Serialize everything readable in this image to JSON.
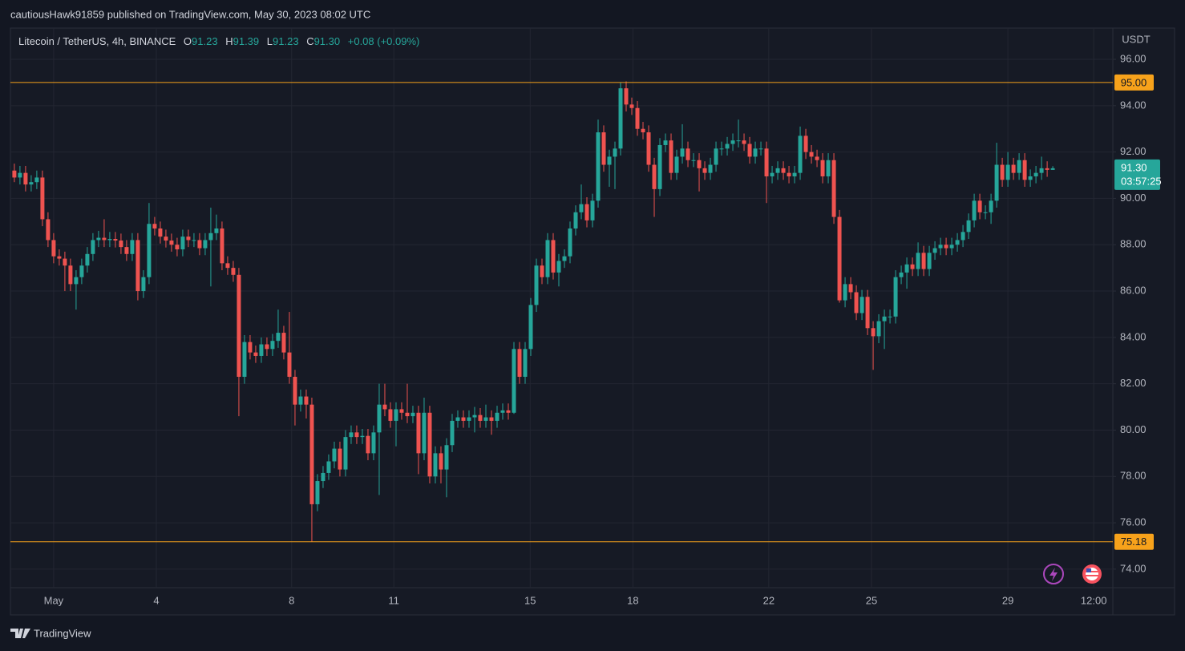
{
  "header": {
    "attribution": "cautiousHawk91859 published on TradingView.com, May 30, 2023 08:02 UTC"
  },
  "footer": {
    "brand": "TradingView"
  },
  "chart_data": {
    "type": "candlestick",
    "symbol": "Litecoin / TetherUS, 4h, BINANCE",
    "legend": {
      "o_label": "O",
      "o": "91.23",
      "h_label": "H",
      "h": "91.39",
      "l_label": "L",
      "l": "91.23",
      "c_label": "C",
      "c": "91.30",
      "change": "+0.08 (+0.09%)"
    },
    "y_unit": "USDT",
    "up_color": "#26a69a",
    "down_color": "#ef5350",
    "open": [
      91.2,
      90.9,
      91.1,
      90.6,
      90.7,
      90.9,
      89.1,
      88.2,
      87.5,
      87.4,
      87.1,
      86.3,
      86.6,
      87.1,
      87.6,
      88.2,
      88.3,
      88.2,
      88.25,
      88.18,
      87.9,
      87.6,
      88.2,
      86.0,
      86.6,
      88.9,
      88.7,
      88.35,
      88.18,
      88.0,
      87.8,
      88.35,
      88.2,
      88.2,
      87.85,
      88.2,
      88.5,
      88.7,
      87.2,
      87.0,
      86.7,
      82.3,
      83.8,
      83.35,
      83.2,
      83.7,
      83.5,
      83.85,
      84.2,
      83.35,
      82.3,
      81.1,
      81.45,
      81.1,
      76.8,
      77.8,
      78.15,
      78.65,
      79.2,
      78.3,
      79.7,
      79.9,
      79.7,
      79.75,
      79.0,
      79.9,
      81.1,
      80.9,
      80.4,
      80.9,
      80.75,
      80.6,
      80.75,
      79.0,
      80.75,
      78.0,
      79.0,
      78.3,
      79.35,
      80.4,
      80.55,
      80.4,
      80.55,
      80.65,
      80.4,
      80.55,
      80.4,
      80.75,
      80.85,
      80.75,
      83.5,
      82.3,
      83.5,
      85.4,
      87.1,
      86.6,
      88.2,
      86.8,
      87.3,
      87.5,
      88.7,
      89.4,
      89.75,
      89.05,
      89.9,
      92.85,
      91.45,
      91.8,
      92.15,
      94.75,
      94.05,
      93.9,
      93.0,
      92.85,
      91.45,
      90.4,
      92.3,
      92.5,
      91.1,
      91.8,
      92.15,
      91.65,
      91.65,
      91.3,
      91.1,
      91.45,
      92.15,
      92.15,
      92.35,
      92.5,
      92.5,
      92.35,
      91.8,
      92.15,
      92.15,
      90.95,
      91.1,
      91.3,
      91.1,
      90.95,
      91.1,
      92.7,
      92.0,
      91.8,
      91.65,
      90.95,
      91.65,
      89.2,
      85.6,
      86.3,
      85.95,
      85.05,
      85.75,
      84.4,
      84.05,
      84.7,
      84.9,
      84.9,
      86.6,
      86.8,
      87.15,
      86.95,
      87.65,
      86.95,
      87.65,
      87.85,
      88.0,
      87.85,
      88.0,
      88.2,
      88.55,
      89.05,
      89.9,
      89.4,
      89.4,
      89.9,
      91.45,
      90.8,
      91.45,
      91.1,
      91.65,
      90.8,
      90.95,
      91.1,
      91.3,
      91.23
    ],
    "high": [
      91.5,
      91.4,
      91.4,
      91.0,
      91.2,
      91.2,
      89.4,
      88.5,
      87.8,
      87.7,
      87.4,
      86.9,
      87.4,
      87.9,
      88.5,
      88.6,
      89.1,
      88.55,
      88.55,
      88.48,
      88.2,
      88.5,
      88.5,
      86.9,
      89.8,
      89.2,
      89.0,
      88.65,
      88.48,
      88.3,
      88.65,
      88.65,
      88.5,
      88.5,
      88.5,
      89.6,
      89.3,
      89.0,
      87.5,
      87.3,
      87.0,
      84.1,
      84.1,
      83.65,
      84.0,
      84.0,
      84.15,
      85.2,
      84.5,
      85.1,
      82.6,
      81.75,
      81.75,
      81.4,
      78.1,
      78.45,
      78.95,
      79.5,
      79.5,
      80.0,
      80.2,
      80.2,
      80.05,
      80.05,
      80.2,
      82.0,
      82.0,
      81.2,
      81.2,
      81.2,
      82.0,
      81.05,
      81.05,
      81.4,
      81.05,
      79.3,
      79.3,
      79.65,
      80.7,
      80.85,
      80.85,
      80.85,
      81.0,
      80.95,
      81.1,
      80.85,
      81.05,
      81.15,
      81.15,
      83.8,
      83.8,
      83.8,
      85.7,
      87.4,
      87.4,
      88.5,
      88.5,
      87.6,
      87.8,
      89.0,
      89.7,
      90.6,
      90.05,
      90.2,
      93.4,
      93.15,
      92.1,
      92.45,
      95.0,
      95.05,
      94.35,
      94.2,
      93.3,
      93.15,
      91.75,
      92.6,
      92.8,
      92.8,
      92.1,
      93.2,
      92.45,
      91.95,
      91.95,
      91.6,
      91.75,
      92.45,
      92.45,
      92.65,
      92.8,
      93.4,
      92.8,
      92.65,
      92.45,
      92.45,
      92.45,
      91.4,
      91.6,
      91.6,
      91.4,
      91.4,
      93.1,
      93.0,
      92.3,
      92.1,
      91.95,
      91.95,
      91.95,
      89.5,
      86.6,
      86.6,
      86.25,
      86.05,
      86.05,
      84.7,
      85.0,
      85.2,
      85.2,
      86.9,
      87.1,
      87.45,
      87.45,
      88.1,
      87.95,
      87.95,
      88.15,
      88.3,
      88.3,
      88.3,
      88.5,
      88.85,
      89.35,
      90.2,
      90.2,
      89.7,
      90.2,
      92.4,
      91.75,
      92.0,
      91.75,
      91.95,
      91.95,
      91.25,
      91.4,
      91.8,
      91.6,
      91.39
    ],
    "low": [
      90.7,
      90.6,
      90.3,
      90.3,
      90.4,
      88.8,
      87.9,
      87.2,
      87.1,
      86.0,
      86.0,
      85.2,
      86.3,
      86.8,
      87.3,
      87.9,
      87.9,
      87.9,
      87.88,
      87.6,
      87.3,
      87.3,
      85.6,
      85.7,
      86.3,
      88.4,
      88.05,
      87.88,
      87.7,
      87.5,
      87.5,
      87.9,
      87.9,
      87.55,
      87.55,
      86.2,
      88.2,
      86.9,
      86.7,
      86.4,
      80.6,
      82.0,
      83.05,
      82.9,
      82.9,
      83.2,
      83.2,
      83.55,
      83.05,
      82.0,
      80.2,
      80.8,
      80.5,
      75.18,
      76.5,
      77.5,
      77.85,
      78.35,
      78.0,
      78.0,
      79.4,
      79.4,
      79.4,
      78.7,
      78.7,
      77.2,
      80.6,
      80.1,
      79.3,
      80.45,
      80.3,
      80.3,
      78.1,
      78.7,
      77.7,
      77.7,
      77.7,
      77.1,
      79.05,
      80.1,
      80.1,
      80.1,
      79.9,
      80.1,
      80.1,
      79.8,
      80.1,
      80.45,
      80.45,
      80.7,
      82.0,
      82.0,
      83.2,
      85.1,
      86.3,
      86.3,
      86.5,
      86.2,
      87.0,
      87.2,
      88.4,
      89.1,
      88.75,
      88.75,
      89.6,
      91.15,
      90.5,
      90.4,
      91.85,
      93.75,
      93.6,
      92.7,
      92.55,
      91.15,
      89.2,
      90.1,
      92.0,
      90.8,
      90.8,
      91.5,
      91.35,
      91.35,
      90.3,
      90.8,
      90.8,
      91.15,
      91.85,
      91.85,
      92.05,
      92.2,
      92.05,
      91.5,
      91.5,
      91.85,
      89.8,
      90.65,
      90.8,
      90.8,
      90.65,
      90.65,
      90.8,
      91.7,
      91.5,
      91.35,
      90.65,
      90.65,
      88.9,
      85.5,
      85.3,
      85.65,
      84.75,
      84.75,
      84.1,
      82.6,
      83.75,
      83.5,
      84.6,
      84.6,
      86.3,
      86.1,
      86.65,
      86.65,
      86.65,
      86.65,
      87.35,
      87.55,
      87.55,
      87.55,
      87.7,
      87.9,
      88.25,
      88.75,
      89.1,
      89.1,
      88.9,
      89.6,
      90.5,
      90.5,
      90.8,
      90.8,
      90.5,
      90.5,
      90.65,
      90.8,
      90.93,
      91.23
    ],
    "close": [
      90.9,
      91.1,
      90.6,
      90.7,
      90.9,
      89.1,
      88.2,
      87.5,
      87.4,
      87.1,
      86.3,
      86.6,
      87.1,
      87.6,
      88.2,
      88.3,
      88.2,
      88.25,
      88.18,
      87.9,
      87.6,
      88.2,
      86.0,
      86.6,
      88.9,
      88.7,
      88.35,
      88.18,
      88.0,
      87.8,
      88.35,
      88.2,
      88.2,
      87.85,
      88.2,
      88.5,
      88.7,
      87.2,
      87.0,
      86.7,
      82.3,
      83.8,
      83.35,
      83.2,
      83.7,
      83.5,
      83.85,
      84.2,
      83.35,
      82.3,
      81.1,
      81.45,
      81.1,
      76.8,
      77.8,
      78.15,
      78.65,
      79.2,
      78.3,
      79.7,
      79.9,
      79.7,
      79.75,
      79.0,
      79.9,
      81.1,
      80.9,
      80.4,
      80.9,
      80.75,
      80.6,
      80.75,
      79.0,
      80.75,
      78.0,
      79.0,
      78.3,
      79.35,
      80.4,
      80.55,
      80.4,
      80.55,
      80.65,
      80.4,
      80.55,
      80.4,
      80.75,
      80.85,
      80.75,
      83.5,
      82.3,
      83.5,
      85.4,
      87.1,
      86.6,
      88.2,
      86.8,
      87.3,
      87.5,
      88.7,
      89.4,
      89.75,
      89.05,
      89.9,
      92.85,
      91.45,
      91.8,
      92.15,
      94.75,
      94.05,
      93.9,
      93.0,
      92.85,
      91.45,
      90.4,
      92.3,
      92.5,
      91.1,
      91.8,
      92.15,
      91.65,
      91.65,
      91.3,
      91.1,
      91.45,
      92.15,
      92.15,
      92.35,
      92.5,
      92.5,
      92.35,
      91.8,
      92.15,
      92.15,
      90.95,
      91.1,
      91.3,
      91.1,
      90.95,
      91.1,
      92.7,
      92.0,
      91.8,
      91.65,
      90.95,
      91.65,
      89.2,
      85.6,
      86.3,
      85.95,
      85.05,
      85.75,
      84.4,
      84.05,
      84.7,
      84.9,
      84.9,
      86.6,
      86.8,
      87.15,
      86.95,
      87.65,
      86.95,
      87.65,
      87.85,
      88.0,
      87.85,
      88.0,
      88.2,
      88.55,
      89.05,
      89.9,
      89.4,
      89.4,
      89.9,
      91.45,
      90.8,
      91.45,
      91.1,
      91.65,
      90.8,
      90.95,
      91.1,
      91.3,
      91.23,
      91.3
    ],
    "xlim": [
      -0.7,
      195.7
    ],
    "xticks": [
      {
        "value": 7,
        "label": "May"
      },
      {
        "value": 25.3,
        "label": "4"
      },
      {
        "value": 49.4,
        "label": "8"
      },
      {
        "value": 67.6,
        "label": "11"
      },
      {
        "value": 91.9,
        "label": "15"
      },
      {
        "value": 110.2,
        "label": "18"
      },
      {
        "value": 134.4,
        "label": "22"
      },
      {
        "value": 152.7,
        "label": "25"
      },
      {
        "value": 177,
        "label": "29"
      },
      {
        "value": 192.3,
        "label": "12:00"
      }
    ],
    "ylim": [
      73.2,
      97.35
    ],
    "yticks": [
      {
        "value": 74,
        "label": "74.00"
      },
      {
        "value": 76,
        "label": "76.00"
      },
      {
        "value": 78,
        "label": "78.00"
      },
      {
        "value": 80,
        "label": "80.00"
      },
      {
        "value": 82,
        "label": "82.00"
      },
      {
        "value": 84,
        "label": "84.00"
      },
      {
        "value": 86,
        "label": "86.00"
      },
      {
        "value": 88,
        "label": "88.00"
      },
      {
        "value": 90,
        "label": "90.00"
      },
      {
        "value": 92,
        "label": "92.00"
      },
      {
        "value": 94,
        "label": "94.00"
      },
      {
        "value": 96,
        "label": "96.00"
      }
    ],
    "hlines": [
      {
        "value": 95,
        "label": "95.00",
        "color": "#f7a21b"
      },
      {
        "value": 75.18,
        "label": "75.18",
        "color": "#f7a21b"
      }
    ],
    "last_price": {
      "value": 91.3,
      "label": "91.30",
      "countdown": "03:57:25",
      "color": "#26a69a"
    },
    "grid": true
  }
}
